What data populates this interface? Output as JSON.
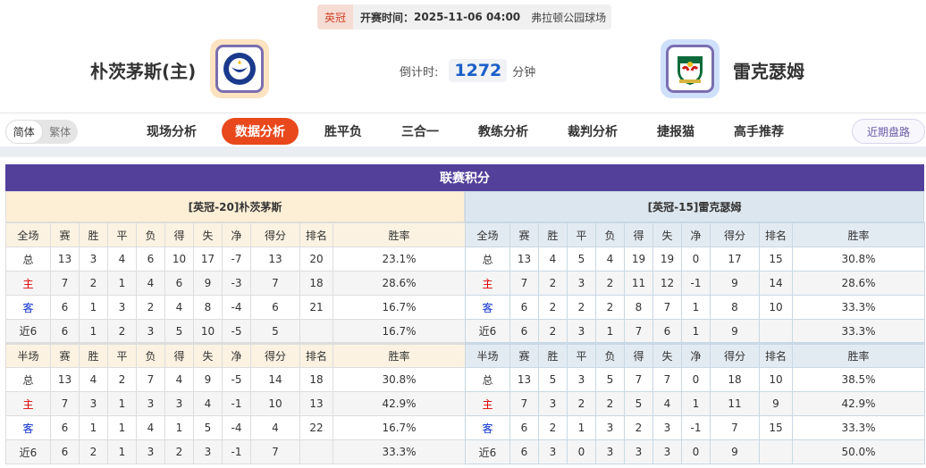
{
  "match": {
    "league": "英冠",
    "kickoff_label": "开赛时间：",
    "kickoff": "2025-11-06 04:00",
    "venue": "弗拉顿公园球场"
  },
  "home": {
    "name": "朴茨茅斯(主)",
    "logo": "portsmouth-crest"
  },
  "away": {
    "name": "雷克瑟姆",
    "logo": "wrexham-crest"
  },
  "countdown": {
    "label": "倒计时:",
    "value": "1272",
    "unit": "分钟"
  },
  "lang": {
    "simplified": "简体",
    "traditional": "繁体"
  },
  "tabs": [
    {
      "label": "现场分析"
    },
    {
      "label": "数据分析",
      "active": true
    },
    {
      "label": "胜平负"
    },
    {
      "label": "三合一"
    },
    {
      "label": "教练分析"
    },
    {
      "label": "裁判分析"
    },
    {
      "label": "捷报猫"
    },
    {
      "label": "高手推荐"
    }
  ],
  "recent_button": "近期盘路",
  "section_title": "联赛积分",
  "colors": {
    "accent": "#e8481c",
    "title_bar": "#52409a",
    "home_red": "#dd0000",
    "away_blue": "#0a2ed0"
  },
  "standings": [
    {
      "header": "[英冠-20]朴茨茅斯",
      "full": {
        "columns": [
          "全场",
          "赛",
          "胜",
          "平",
          "负",
          "得",
          "失",
          "净",
          "得分",
          "排名",
          "胜率"
        ],
        "rows": [
          [
            "总",
            "13",
            "3",
            "4",
            "6",
            "10",
            "17",
            "-7",
            "13",
            "20",
            "23.1%"
          ],
          [
            "主",
            "7",
            "2",
            "1",
            "4",
            "6",
            "9",
            "-3",
            "7",
            "18",
            "28.6%"
          ],
          [
            "客",
            "6",
            "1",
            "3",
            "2",
            "4",
            "8",
            "-4",
            "6",
            "21",
            "16.7%"
          ],
          [
            "近6",
            "6",
            "1",
            "2",
            "3",
            "5",
            "10",
            "-5",
            "5",
            "",
            "16.7%"
          ]
        ]
      },
      "half": {
        "columns": [
          "半场",
          "赛",
          "胜",
          "平",
          "负",
          "得",
          "失",
          "净",
          "得分",
          "排名",
          "胜率"
        ],
        "rows": [
          [
            "总",
            "13",
            "4",
            "2",
            "7",
            "4",
            "9",
            "-5",
            "14",
            "18",
            "30.8%"
          ],
          [
            "主",
            "7",
            "3",
            "1",
            "3",
            "3",
            "4",
            "-1",
            "10",
            "13",
            "42.9%"
          ],
          [
            "客",
            "6",
            "1",
            "1",
            "4",
            "1",
            "5",
            "-4",
            "4",
            "22",
            "16.7%"
          ],
          [
            "近6",
            "6",
            "2",
            "1",
            "3",
            "2",
            "3",
            "-1",
            "7",
            "",
            "33.3%"
          ]
        ]
      }
    },
    {
      "header": "[英冠-15]雷克瑟姆",
      "full": {
        "columns": [
          "全场",
          "赛",
          "胜",
          "平",
          "负",
          "得",
          "失",
          "净",
          "得分",
          "排名",
          "胜率"
        ],
        "rows": [
          [
            "总",
            "13",
            "4",
            "5",
            "4",
            "19",
            "19",
            "0",
            "17",
            "15",
            "30.8%"
          ],
          [
            "主",
            "7",
            "2",
            "3",
            "2",
            "11",
            "12",
            "-1",
            "9",
            "14",
            "28.6%"
          ],
          [
            "客",
            "6",
            "2",
            "2",
            "2",
            "8",
            "7",
            "1",
            "8",
            "10",
            "33.3%"
          ],
          [
            "近6",
            "6",
            "2",
            "3",
            "1",
            "7",
            "6",
            "1",
            "9",
            "",
            "33.3%"
          ]
        ]
      },
      "half": {
        "columns": [
          "半场",
          "赛",
          "胜",
          "平",
          "负",
          "得",
          "失",
          "净",
          "得分",
          "排名",
          "胜率"
        ],
        "rows": [
          [
            "总",
            "13",
            "5",
            "3",
            "5",
            "7",
            "7",
            "0",
            "18",
            "10",
            "38.5%"
          ],
          [
            "主",
            "7",
            "3",
            "2",
            "2",
            "5",
            "4",
            "1",
            "11",
            "9",
            "42.9%"
          ],
          [
            "客",
            "6",
            "2",
            "1",
            "3",
            "2",
            "3",
            "-1",
            "7",
            "15",
            "33.3%"
          ],
          [
            "近6",
            "6",
            "3",
            "0",
            "3",
            "3",
            "3",
            "0",
            "9",
            "",
            "50.0%"
          ]
        ]
      }
    }
  ]
}
